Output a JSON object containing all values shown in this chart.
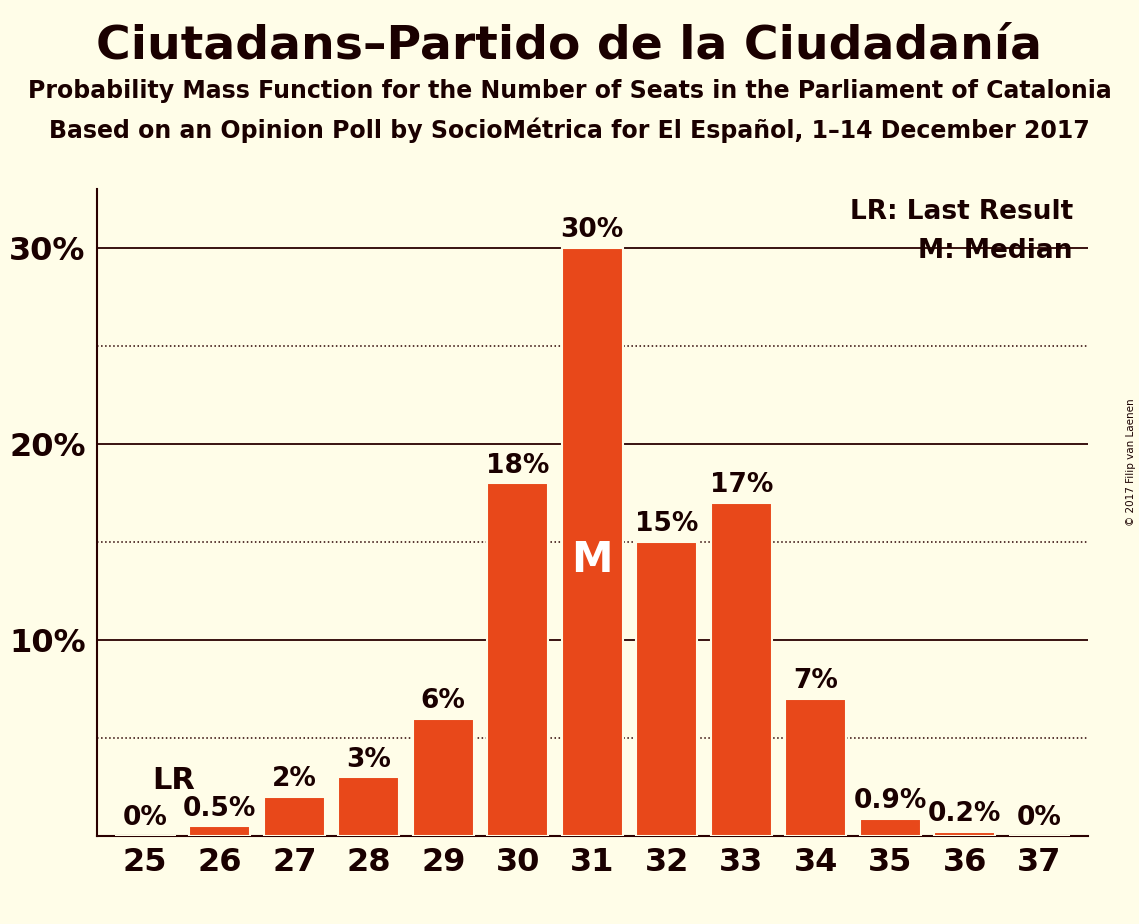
{
  "title": "Ciutadans–Partido de la Ciudadanía",
  "subtitle1": "Probability Mass Function for the Number of Seats in the Parliament of Catalonia",
  "subtitle2": "Based on an Opinion Poll by SocioMétrica for El Español, 1–14 December 2017",
  "copyright": "© 2017 Filip van Laenen",
  "seats": [
    25,
    26,
    27,
    28,
    29,
    30,
    31,
    32,
    33,
    34,
    35,
    36,
    37
  ],
  "probabilities": [
    0.0,
    0.5,
    2.0,
    3.0,
    6.0,
    18.0,
    30.0,
    15.0,
    17.0,
    7.0,
    0.9,
    0.2,
    0.0
  ],
  "bar_color": "#E8481A",
  "background_color": "#FFFDE8",
  "axis_color": "#2A0000",
  "text_color": "#1A0000",
  "lr_seat": 25,
  "median_seat": 31,
  "solid_yticks": [
    10,
    20,
    30
  ],
  "dotted_yticks": [
    5,
    15,
    25
  ],
  "ylim_max": 33,
  "bar_width": 0.82,
  "title_fontsize": 34,
  "subtitle_fontsize": 17,
  "ytick_fontsize": 23,
  "xtick_fontsize": 23,
  "annotation_fontsize": 19,
  "bar_label_fontsize": 19,
  "legend_fontsize": 19,
  "lr_fontsize": 22,
  "median_fontsize": 30
}
